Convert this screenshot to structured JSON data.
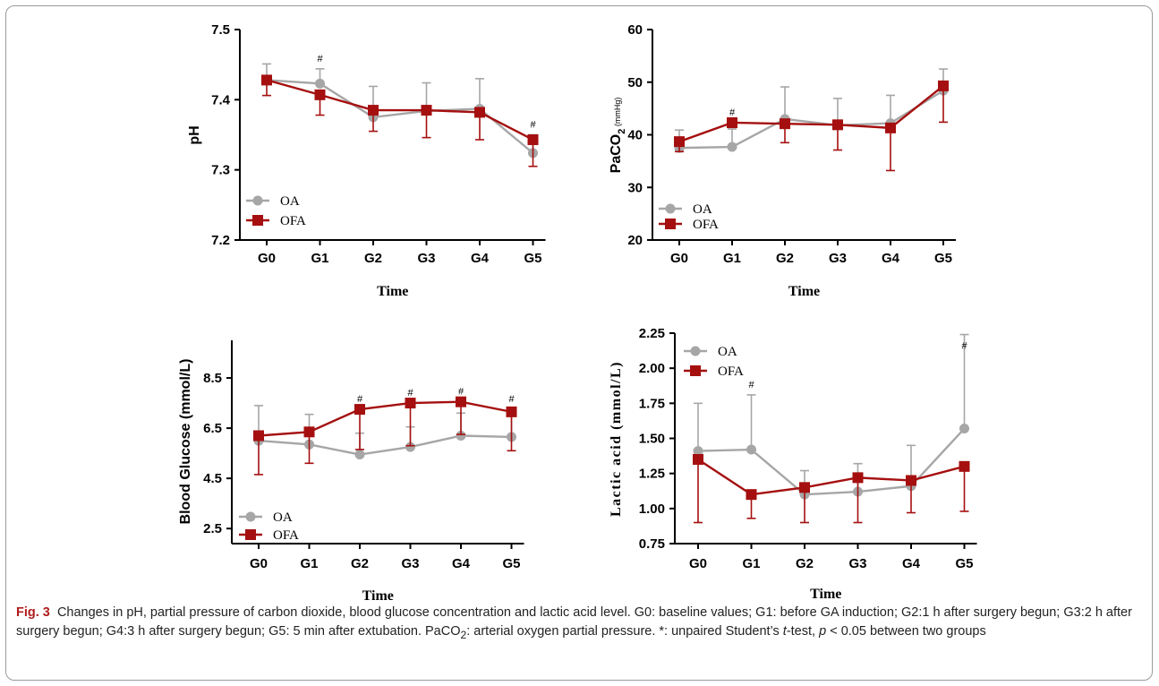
{
  "colors": {
    "oa": "#a6a6a6",
    "ofa": "#a50f0f"
  },
  "chart_data": [
    {
      "id": "ph",
      "type": "line",
      "ylabel": "pH",
      "xlabel": "Time",
      "categories": [
        "G0",
        "G1",
        "G2",
        "G3",
        "G4",
        "G5"
      ],
      "ylim": [
        7.2,
        7.5
      ],
      "yticks": [
        "7.2",
        "7.3",
        "7.4",
        "7.5"
      ],
      "legend_position": "bottom-left",
      "series": [
        {
          "name": "OA",
          "marker": "circle",
          "values": [
            7.428,
            7.423,
            7.375,
            7.384,
            7.387,
            7.324
          ],
          "err": [
            0.023,
            0.021,
            0.044,
            0.04,
            0.043,
            0.026
          ]
        },
        {
          "name": "OFA",
          "marker": "square",
          "values": [
            7.428,
            7.407,
            7.385,
            7.385,
            7.382,
            7.343
          ],
          "err": [
            0.022,
            0.029,
            0.03,
            0.039,
            0.039,
            0.038
          ]
        }
      ],
      "annotations": [
        {
          "x": "G1",
          "text": "#"
        },
        {
          "x": "G5",
          "text": "#"
        }
      ]
    },
    {
      "id": "paco2",
      "type": "line",
      "ylabel": "PaCO",
      "ylabel_sub": "2",
      "ylabel_unit": "(mmHg)",
      "xlabel": "Time",
      "categories": [
        "G0",
        "G1",
        "G2",
        "G3",
        "G4",
        "G5"
      ],
      "ylim": [
        20,
        60
      ],
      "yticks": [
        "20",
        "30",
        "40",
        "50",
        "60"
      ],
      "legend_position": "bottom-left",
      "series": [
        {
          "name": "OA",
          "marker": "circle",
          "values": [
            37.5,
            37.7,
            43.0,
            41.8,
            42.2,
            48.4
          ],
          "err": [
            3.4,
            3.4,
            6.1,
            5.1,
            5.3,
            4.1
          ]
        },
        {
          "name": "OFA",
          "marker": "square",
          "values": [
            38.7,
            42.3,
            42.1,
            41.9,
            41.3,
            49.3
          ],
          "err": [
            1.9,
            0.9,
            3.6,
            4.8,
            8.1,
            6.9
          ]
        }
      ],
      "annotations": [
        {
          "x": "G1",
          "text": "#"
        }
      ]
    },
    {
      "id": "glucose",
      "type": "line",
      "ylabel": "Blood Glucose (mmol/L)",
      "xlabel": "Time",
      "categories": [
        "G0",
        "G1",
        "G2",
        "G3",
        "G4",
        "G5"
      ],
      "ylim": [
        1.9,
        10
      ],
      "yticks": [
        "2.5",
        "4.5",
        "6.5",
        "8.5"
      ],
      "ytick_values": [
        2.5,
        4.5,
        6.5,
        8.5
      ],
      "legend_position": "bottom-left",
      "series": [
        {
          "name": "OA",
          "marker": "circle",
          "values": [
            6.0,
            5.85,
            5.45,
            5.75,
            6.2,
            6.15
          ],
          "err": [
            1.4,
            1.2,
            0.85,
            0.8,
            0.9,
            1.1
          ]
        },
        {
          "name": "OFA",
          "marker": "square",
          "values": [
            6.2,
            6.35,
            7.25,
            7.5,
            7.55,
            7.15
          ],
          "err": [
            1.55,
            1.25,
            1.6,
            1.7,
            1.3,
            1.55
          ]
        }
      ],
      "annotations": [
        {
          "x": "G2",
          "text": "#"
        },
        {
          "x": "G3",
          "text": "#"
        },
        {
          "x": "G4",
          "text": "#"
        },
        {
          "x": "G5",
          "text": "#"
        }
      ]
    },
    {
      "id": "lactate",
      "type": "line",
      "ylabel": "Lactic acid (mmol/L)",
      "xlabel": "Time",
      "categories": [
        "G0",
        "G1",
        "G2",
        "G3",
        "G4",
        "G5"
      ],
      "ylim": [
        0.75,
        2.25
      ],
      "yticks": [
        "0.75",
        "1.00",
        "1.25",
        "1.50",
        "1.75",
        "2.00",
        "2.25"
      ],
      "legend_position": "top-left",
      "series": [
        {
          "name": "OA",
          "marker": "circle",
          "values": [
            1.41,
            1.42,
            1.1,
            1.12,
            1.16,
            1.57
          ],
          "err": [
            0.34,
            0.39,
            0.17,
            0.2,
            0.29,
            0.67
          ]
        },
        {
          "name": "OFA",
          "marker": "square",
          "values": [
            1.35,
            1.1,
            1.15,
            1.22,
            1.2,
            1.3
          ],
          "err": [
            0.45,
            0.17,
            0.25,
            0.32,
            0.23,
            0.32
          ]
        }
      ],
      "annotations": [
        {
          "x": "G1",
          "text": "#"
        },
        {
          "x": "G5",
          "text": "#"
        }
      ]
    }
  ],
  "caption": {
    "fig": "Fig. 3",
    "text": "Changes in pH, partial pressure of carbon dioxide, blood glucose concentration and lactic acid level. G0: baseline values; G1: before GA induction; G2:1 h after surgery begun; G3:2 h after surgery begun; G4:3 h after surgery begun; G5: 5 min after extubation. PaCO",
    "sub": "2",
    "text2": ": arterial oxygen partial pressure. *: unpaired Student’s ",
    "ital_t": "t",
    "text3": "-test, ",
    "ital_p": "p",
    "text4": " < 0.05 between two groups"
  }
}
